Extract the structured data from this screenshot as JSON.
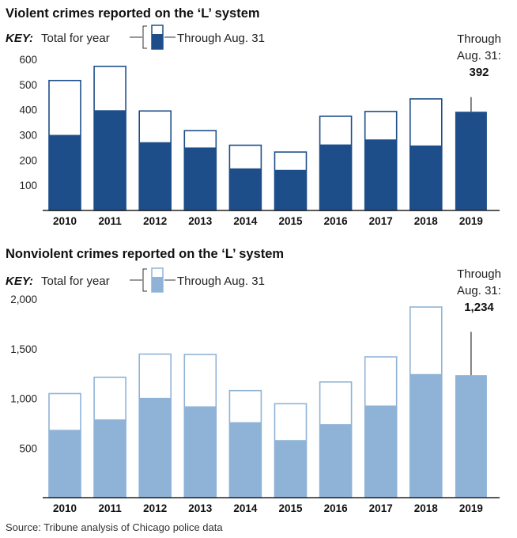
{
  "key_label": "KEY:",
  "key_total_label": "Total for year",
  "key_through_label": "Through Aug. 31",
  "source": "Source: Tribune analysis of Chicago police data",
  "colors": {
    "outline_dark": "#1d4e89",
    "fill_dark": "#1d4e89",
    "outline_light": "#8fb3d6",
    "fill_light": "#8fb3d6",
    "axis": "#222222",
    "grid": "#d9d9d9",
    "callout_line": "#555555"
  },
  "chart_data": [
    {
      "type": "bar",
      "title": "Violent crimes reported on the ‘L’ system",
      "categories": [
        "2010",
        "2011",
        "2012",
        "2013",
        "2014",
        "2015",
        "2016",
        "2017",
        "2018",
        "2019"
      ],
      "series": [
        {
          "name": "Total for year",
          "values": [
            516,
            572,
            395,
            317,
            259,
            232,
            374,
            393,
            443,
            null
          ]
        },
        {
          "name": "Through Aug. 31",
          "values": [
            300,
            398,
            271,
            250,
            167,
            161,
            262,
            282,
            258,
            392
          ]
        }
      ],
      "ylim": [
        0,
        600
      ],
      "yticks": [
        100,
        200,
        300,
        400,
        500,
        600
      ],
      "ytick_labels": [
        "100",
        "200",
        "300",
        "400",
        "500",
        "600"
      ],
      "callout": {
        "line1": "Through",
        "line2": "Aug. 31:",
        "value": "392",
        "category": "2019",
        "line_top_value": 450
      },
      "grid": false
    },
    {
      "type": "bar",
      "title": "Nonviolent crimes reported on the ‘L’ system",
      "categories": [
        "2010",
        "2011",
        "2012",
        "2013",
        "2014",
        "2015",
        "2016",
        "2017",
        "2018",
        "2019"
      ],
      "series": [
        {
          "name": "Total for year",
          "values": [
            1048,
            1212,
            1446,
            1442,
            1078,
            946,
            1165,
            1418,
            1920,
            null
          ]
        },
        {
          "name": "Through Aug. 31",
          "values": [
            683,
            788,
            1005,
            920,
            760,
            580,
            740,
            928,
            1245,
            1234
          ]
        }
      ],
      "ylim": [
        0,
        2000
      ],
      "yticks": [
        500,
        1000,
        1500,
        2000
      ],
      "ytick_labels": [
        "500",
        "1,000",
        "1,500",
        "2,000"
      ],
      "callout": {
        "line1": "Through",
        "line2": "Aug. 31:",
        "value": "1,234",
        "category": "2019",
        "line_top_value": 1670
      },
      "grid": false
    }
  ]
}
